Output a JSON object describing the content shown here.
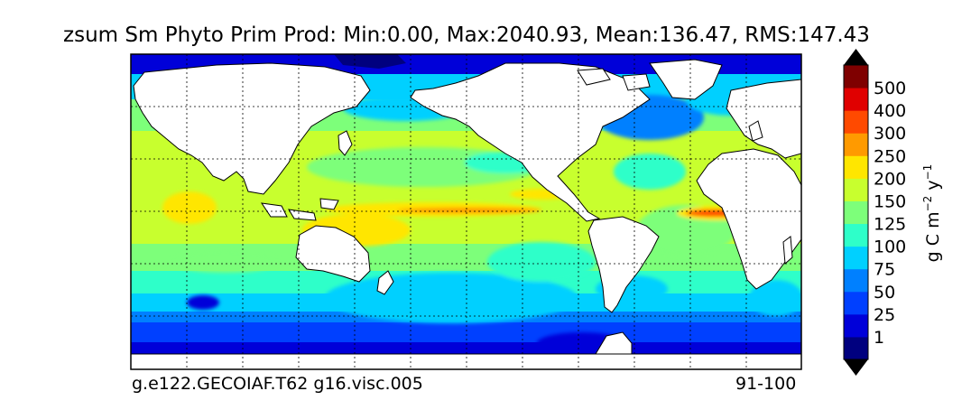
{
  "title": "zsum Sm Phyto Prim Prod: Min:0.00, Max:2040.93, Mean:136.47, RMS:147.43",
  "footer": {
    "case_name": "g.e122.GECOIAF.T62 g16.visc.005",
    "years": "91-100"
  },
  "colorbar": {
    "unit_label": "g C m^-2 y^-1",
    "levels": [
      "1",
      "25",
      "50",
      "75",
      "100",
      "125",
      "150",
      "200",
      "250",
      "300",
      "400",
      "500"
    ],
    "colors": [
      "#00007f",
      "#0000d9",
      "#0040ff",
      "#0080ff",
      "#00d0ff",
      "#2effc9",
      "#7dff7a",
      "#c8ff2e",
      "#ffe600",
      "#ff9a00",
      "#ff4a00",
      "#e00000",
      "#7f0000"
    ]
  },
  "map": {
    "projection": "cylindrical",
    "ocean_palette_note": "filled contours of depth-integrated small phytoplankton primary production",
    "land_color": "#ffffff",
    "grid": "dashed"
  }
}
